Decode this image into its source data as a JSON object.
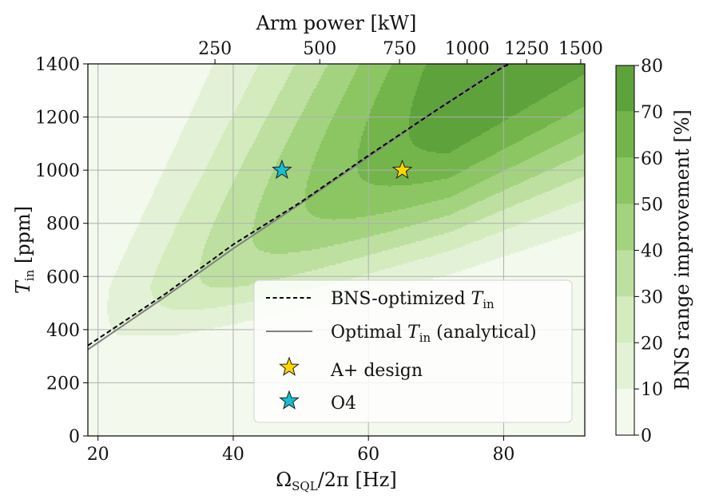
{
  "chart_data": {
    "type": "heatmap",
    "subtype": "filled-contour",
    "xlabel": "Ω_SQL/2π [Hz]",
    "ylabel": "T_in [ppm]",
    "top_xlabel": "Arm power [kW]",
    "colorbar_label": "BNS range improvement [%]",
    "xlim": [
      18.5,
      92
    ],
    "ylim": [
      0,
      1400
    ],
    "x_ticks": [
      20,
      40,
      60,
      80
    ],
    "y_ticks": [
      0,
      200,
      400,
      600,
      800,
      1000,
      1200,
      1400
    ],
    "top_ticks": [
      {
        "label": "250",
        "x": 37.3
      },
      {
        "label": "500",
        "x": 52.8
      },
      {
        "label": "750",
        "x": 64.6
      },
      {
        "label": "1000",
        "x": 74.6
      },
      {
        "label": "1250",
        "x": 83.4
      },
      {
        "label": "1500",
        "x": 91.4
      }
    ],
    "colorbar_ticks": [
      0,
      10,
      20,
      30,
      40,
      50,
      60,
      70,
      80
    ],
    "colorbar_range": [
      0,
      80
    ],
    "contour_levels": [
      0,
      10,
      20,
      30,
      40,
      50,
      60,
      70,
      80
    ],
    "colors": [
      "#f3f9ed",
      "#e3f2d6",
      "#d3ebbd",
      "#bde0a0",
      "#a4d37f",
      "#8cc663",
      "#73b54b",
      "#5ea23c",
      "#468a2c"
    ],
    "optimum_ridge": {
      "slope_ppm_per_Hz": 17.5,
      "peak_improvement_pct": 78
    },
    "series": [
      {
        "name": "BNS-optimized T_in",
        "style": "dashed",
        "color": "#000000",
        "x": [
          18.5,
          30,
          40,
          50,
          60,
          70,
          80,
          81
        ],
        "y": [
          340,
          535,
          720,
          880,
          1055,
          1225,
          1390,
          1400
        ]
      },
      {
        "name": "Optimal T_in (analytical)",
        "style": "solid",
        "color": "#808080",
        "x": [
          18.5,
          30,
          40,
          50,
          60,
          70,
          80,
          80.3
        ],
        "y": [
          325,
          525,
          705,
          875,
          1050,
          1225,
          1395,
          1400
        ]
      }
    ],
    "points": [
      {
        "name": "A+ design",
        "x": 65,
        "y": 1000,
        "color": "#ffd700"
      },
      {
        "name": "O4",
        "x": 47.2,
        "y": 1000,
        "color": "#17becf"
      }
    ],
    "legend": {
      "position": "lower-right",
      "entries": [
        "BNS-optimized T_in",
        "Optimal T_in (analytical)",
        "A+ design",
        "O4"
      ]
    }
  }
}
